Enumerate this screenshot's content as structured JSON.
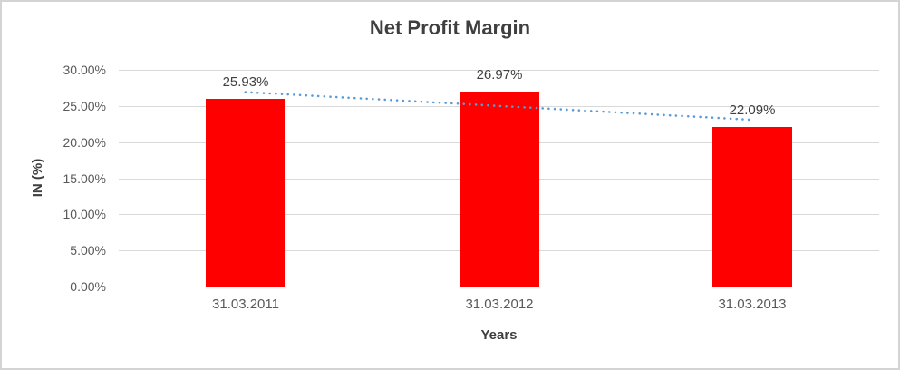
{
  "chart_data": {
    "type": "bar",
    "title": "Net Profit Margin",
    "xlabel": "Years",
    "ylabel": "IN (%)",
    "categories": [
      "31.03.2011",
      "31.03.2012",
      "31.03.2013"
    ],
    "values": [
      25.93,
      26.97,
      22.09
    ],
    "data_labels": [
      "25.93%",
      "26.97%",
      "22.09%"
    ],
    "y_ticks": [
      "30.00%",
      "25.00%",
      "20.00%",
      "15.00%",
      "10.00%",
      "5.00%",
      "0.00%"
    ],
    "ylim": [
      0,
      30
    ],
    "grid": true,
    "legend_position": "none",
    "bar_color": "#ff0000",
    "gridline_color": "#d9d9d9",
    "trendline": {
      "type": "linear",
      "style": "dotted",
      "color": "#5b9bd5",
      "endpoint_values": [
        26.92,
        23.08
      ]
    }
  }
}
